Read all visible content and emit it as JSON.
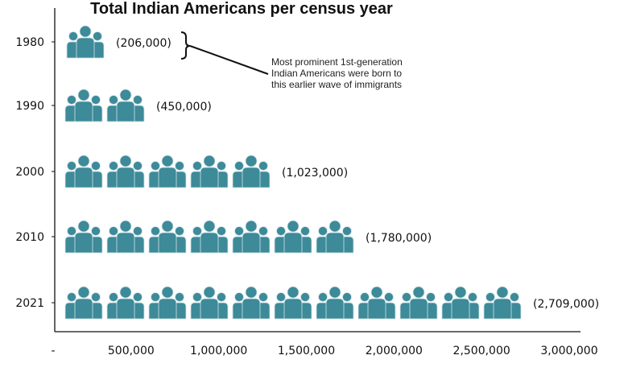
{
  "chart_data": {
    "type": "bar",
    "subtype": "pictograph",
    "orientation": "horizontal",
    "title": "Total Indian Americans per census year",
    "categories": [
      "1980",
      "1990",
      "2000",
      "2010",
      "2021"
    ],
    "values": [
      206000,
      450000,
      1023000,
      1780000,
      2709000
    ],
    "data_labels": [
      "(206,000)",
      "(450,000)",
      "(1,023,000)",
      "(1,780,000)",
      "(2,709,000)"
    ],
    "icon_counts": [
      1,
      2,
      5,
      7,
      11
    ],
    "icon": "people-group-icon",
    "xlim": [
      0,
      3000000
    ],
    "x_ticks": [
      0,
      500000,
      1000000,
      1500000,
      2000000,
      2500000,
      3000000
    ],
    "x_tick_labels": [
      "-",
      "500,000",
      "1,000,000",
      "1,500,000",
      "2,000,000",
      "2,500,000",
      "3,000,000"
    ],
    "xlabel": "",
    "ylabel": "",
    "grid": false,
    "color": "#3d8a99",
    "annotation": {
      "target": "1980",
      "text": "Most prominent 1st-generation\nIndian Americans were born to\nthis earlier wave of immigrants"
    }
  }
}
